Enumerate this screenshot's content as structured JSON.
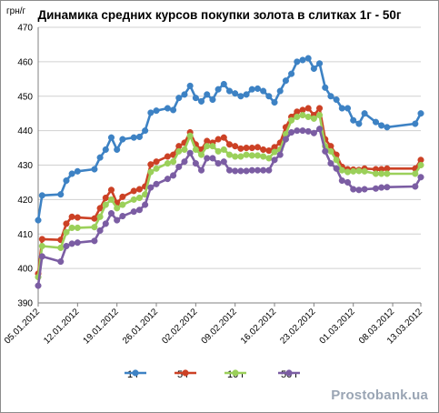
{
  "chart_data": {
    "type": "line",
    "title": "Динамика средних курсов покупки золота в слитках 1г  -  50г",
    "ylabel": "грн/г",
    "xlabel": "",
    "ylim": [
      390,
      470
    ],
    "yticks": [
      "390",
      "400",
      "410",
      "420",
      "430",
      "440",
      "450",
      "460",
      "470"
    ],
    "xticks": [
      {
        "label": "05.01.2012",
        "day": 0
      },
      {
        "label": "12.01.2012",
        "day": 7
      },
      {
        "label": "19.01.2012",
        "day": 14
      },
      {
        "label": "26.01.2012",
        "day": 21
      },
      {
        "label": "02.02.2012",
        "day": 28
      },
      {
        "label": "09.02.2012",
        "day": 35
      },
      {
        "label": "16.02.2012",
        "day": 42
      },
      {
        "label": "23.02.2012",
        "day": 49
      },
      {
        "label": "01.03.2012",
        "day": 56
      },
      {
        "label": "08.03.2012",
        "day": 63
      },
      {
        "label": "13.03.2012",
        "day": 68
      }
    ],
    "x": [
      0,
      0.7,
      4,
      5,
      6,
      7,
      10,
      11,
      12,
      13,
      14,
      15,
      17,
      18,
      19,
      20,
      21,
      23,
      24,
      25,
      26,
      27,
      28,
      29,
      30,
      31,
      32,
      33,
      34,
      35,
      36,
      37,
      38,
      39,
      40,
      41,
      42,
      43,
      44,
      45,
      46,
      47,
      48,
      49,
      50,
      51,
      52,
      53,
      54,
      55,
      56,
      57,
      58,
      60,
      61,
      62,
      67,
      68
    ],
    "series": [
      {
        "name": "1 г",
        "color": "#3d82c4",
        "values": [
          414.0,
          421.2,
          421.5,
          425.5,
          427.5,
          428.2,
          428.8,
          432.2,
          434.5,
          438.0,
          434.5,
          437.5,
          438.0,
          438.2,
          440.0,
          445.2,
          445.8,
          446.5,
          446.0,
          449.5,
          450.5,
          453.0,
          449.5,
          448.5,
          450.5,
          449.0,
          452.0,
          453.5,
          451.5,
          450.8,
          450.0,
          450.5,
          452.0,
          452.2,
          451.5,
          450.0,
          448.2,
          451.5,
          454.5,
          456.5,
          460.0,
          460.5,
          461.0,
          458.0,
          459.5,
          452.5,
          450.0,
          449.0,
          446.5,
          446.5,
          443.0,
          442.0,
          445.0,
          442.5,
          441.5,
          441.0,
          442.0,
          445.0
        ]
      },
      {
        "name": "5 г",
        "color": "#cc4125",
        "values": [
          398.5,
          408.5,
          408.3,
          413.0,
          415.0,
          414.8,
          414.5,
          417.5,
          420.5,
          422.8,
          419.0,
          420.8,
          422.5,
          423.0,
          423.8,
          430.2,
          431.0,
          432.5,
          433.0,
          435.5,
          436.5,
          439.5,
          436.0,
          434.5,
          437.0,
          436.5,
          437.5,
          438.0,
          436.0,
          435.5,
          434.8,
          435.0,
          435.0,
          435.2,
          434.5,
          434.2,
          435.2,
          436.5,
          441.0,
          444.0,
          445.5,
          446.0,
          446.5,
          444.5,
          446.5,
          437.5,
          435.5,
          433.0,
          429.5,
          428.8,
          428.7,
          428.6,
          429.0,
          428.8,
          428.8,
          429.0,
          429.0,
          431.5
        ]
      },
      {
        "name": "10 г",
        "color": "#9bd05a",
        "values": [
          397.5,
          406.5,
          406.0,
          410.5,
          411.8,
          411.8,
          412.0,
          415.0,
          418.5,
          420.0,
          417.5,
          418.5,
          420.0,
          420.5,
          421.5,
          428.0,
          429.0,
          430.5,
          431.0,
          434.0,
          434.5,
          438.5,
          434.5,
          433.0,
          435.5,
          435.5,
          434.0,
          434.5,
          433.0,
          432.5,
          432.5,
          433.0,
          432.8,
          432.8,
          432.5,
          432.0,
          433.8,
          434.5,
          439.0,
          443.0,
          444.0,
          444.5,
          444.0,
          443.5,
          444.5,
          435.5,
          434.0,
          431.5,
          428.5,
          428.0,
          428.2,
          428.3,
          428.2,
          427.5,
          427.5,
          427.5,
          427.5,
          430.0
        ]
      },
      {
        "name": "50 г",
        "color": "#7b5da3",
        "values": [
          395.0,
          403.5,
          402.0,
          406.5,
          407.2,
          407.5,
          408.0,
          411.0,
          413.0,
          416.0,
          414.0,
          415.2,
          416.5,
          417.0,
          418.5,
          423.5,
          424.5,
          426.0,
          427.0,
          429.5,
          431.0,
          433.5,
          430.5,
          428.5,
          432.0,
          432.0,
          430.5,
          431.0,
          428.5,
          428.3,
          428.3,
          428.3,
          428.5,
          428.5,
          428.5,
          428.5,
          431.5,
          433.0,
          437.5,
          439.5,
          440.0,
          440.0,
          439.8,
          439.3,
          440.5,
          434.0,
          430.5,
          429.0,
          425.5,
          425.0,
          423.0,
          422.8,
          423.0,
          423.2,
          423.5,
          423.6,
          423.8,
          426.5
        ]
      }
    ],
    "grid": true,
    "legend": "bottom"
  },
  "watermark": "Prostobank.ua"
}
